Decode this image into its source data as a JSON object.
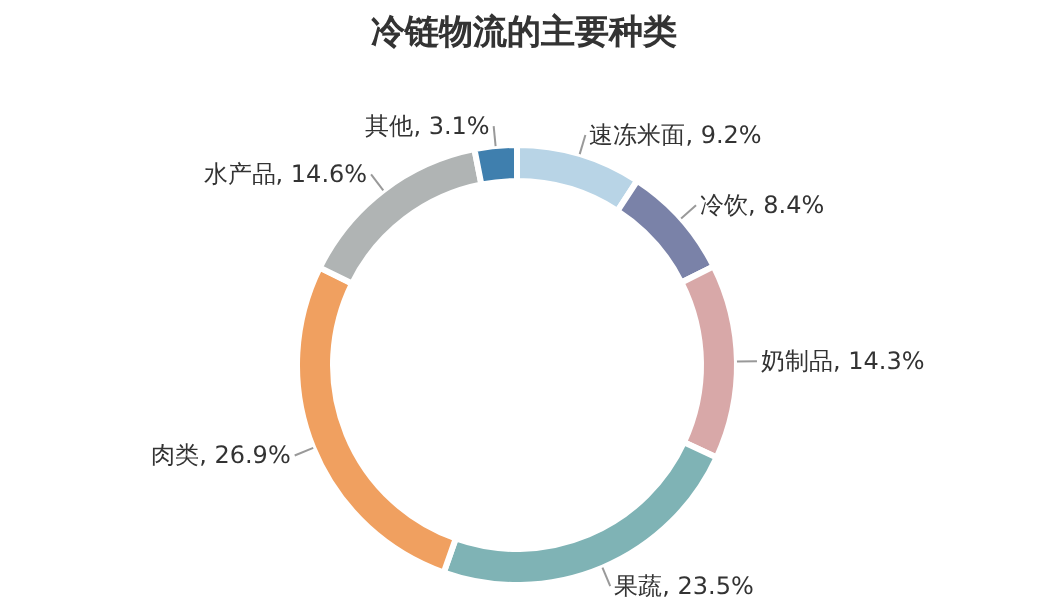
{
  "chart_data": {
    "type": "donut",
    "title": "冷链物流的主要种类",
    "categories": [
      "速冻米面",
      "冷饮",
      "奶制品",
      "果蔬",
      "肉类",
      "水产品",
      "其他"
    ],
    "values": [
      9.2,
      8.4,
      14.3,
      23.5,
      26.9,
      14.6,
      3.1
    ],
    "value_labels": [
      "9.2%",
      "8.4%",
      "14.3%",
      "23.5%",
      "26.9%",
      "14.6%",
      "3.1%"
    ],
    "colors": [
      "#b8d4e6",
      "#7a82a8",
      "#d8a8a8",
      "#7fb3b5",
      "#f0a060",
      "#b0b4b4",
      "#3f7fae"
    ],
    "legend": false
  }
}
